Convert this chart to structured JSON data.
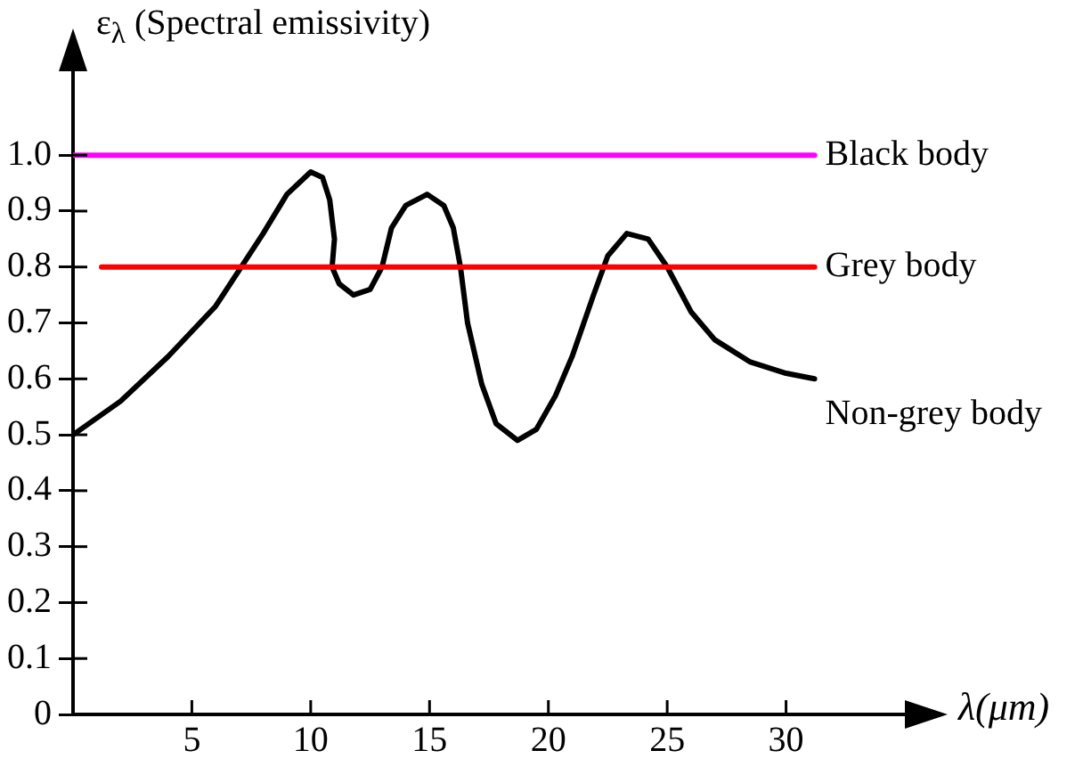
{
  "chart_data": {
    "type": "line",
    "ylabel": "ε$_{λ}$ (Spectral emissivity)",
    "xlabel": "λ(μm)",
    "xlim": [
      0,
      35
    ],
    "ylim": [
      0,
      1.15
    ],
    "xticks": [
      5,
      10,
      15,
      20,
      25,
      30
    ],
    "yticks": [
      0,
      0.1,
      0.2,
      0.3,
      0.4,
      0.5,
      0.6,
      0.7,
      0.8,
      0.9,
      {
        "value": 1,
        "label": "1.0"
      }
    ],
    "grid": false,
    "legend": false,
    "marker": "none",
    "line_style": "solid",
    "series": [
      {
        "name": "Black body",
        "color": "#ff00ff",
        "x": [
          0,
          31.2
        ],
        "values": [
          1,
          1
        ]
      },
      {
        "name": "Grey body",
        "color": "#ff0000",
        "x": [
          1.2,
          31.2
        ],
        "values": [
          0.8,
          0.8
        ]
      },
      {
        "name": "Non-grey body",
        "color": "#000000",
        "x": [
          0,
          2,
          4,
          6,
          8,
          9,
          10,
          10.5,
          10.8,
          11,
          10.9,
          11.2,
          11.8,
          12.5,
          13,
          13.4,
          14,
          14.9,
          15.6,
          16,
          16.3,
          16.6,
          17.2,
          17.8,
          18.7,
          19.5,
          20.3,
          21,
          21.9,
          22.5,
          23.3,
          24.2,
          25,
          26,
          27,
          28.5,
          30,
          31.2
        ],
        "values": [
          0.5,
          0.56,
          0.64,
          0.73,
          0.86,
          0.93,
          0.97,
          0.96,
          0.92,
          0.85,
          0.8,
          0.77,
          0.75,
          0.76,
          0.8,
          0.87,
          0.91,
          0.93,
          0.91,
          0.87,
          0.8,
          0.7,
          0.59,
          0.52,
          0.49,
          0.51,
          0.57,
          0.64,
          0.75,
          0.82,
          0.86,
          0.85,
          0.8,
          0.72,
          0.67,
          0.63,
          0.61,
          0.6
        ]
      }
    ]
  }
}
